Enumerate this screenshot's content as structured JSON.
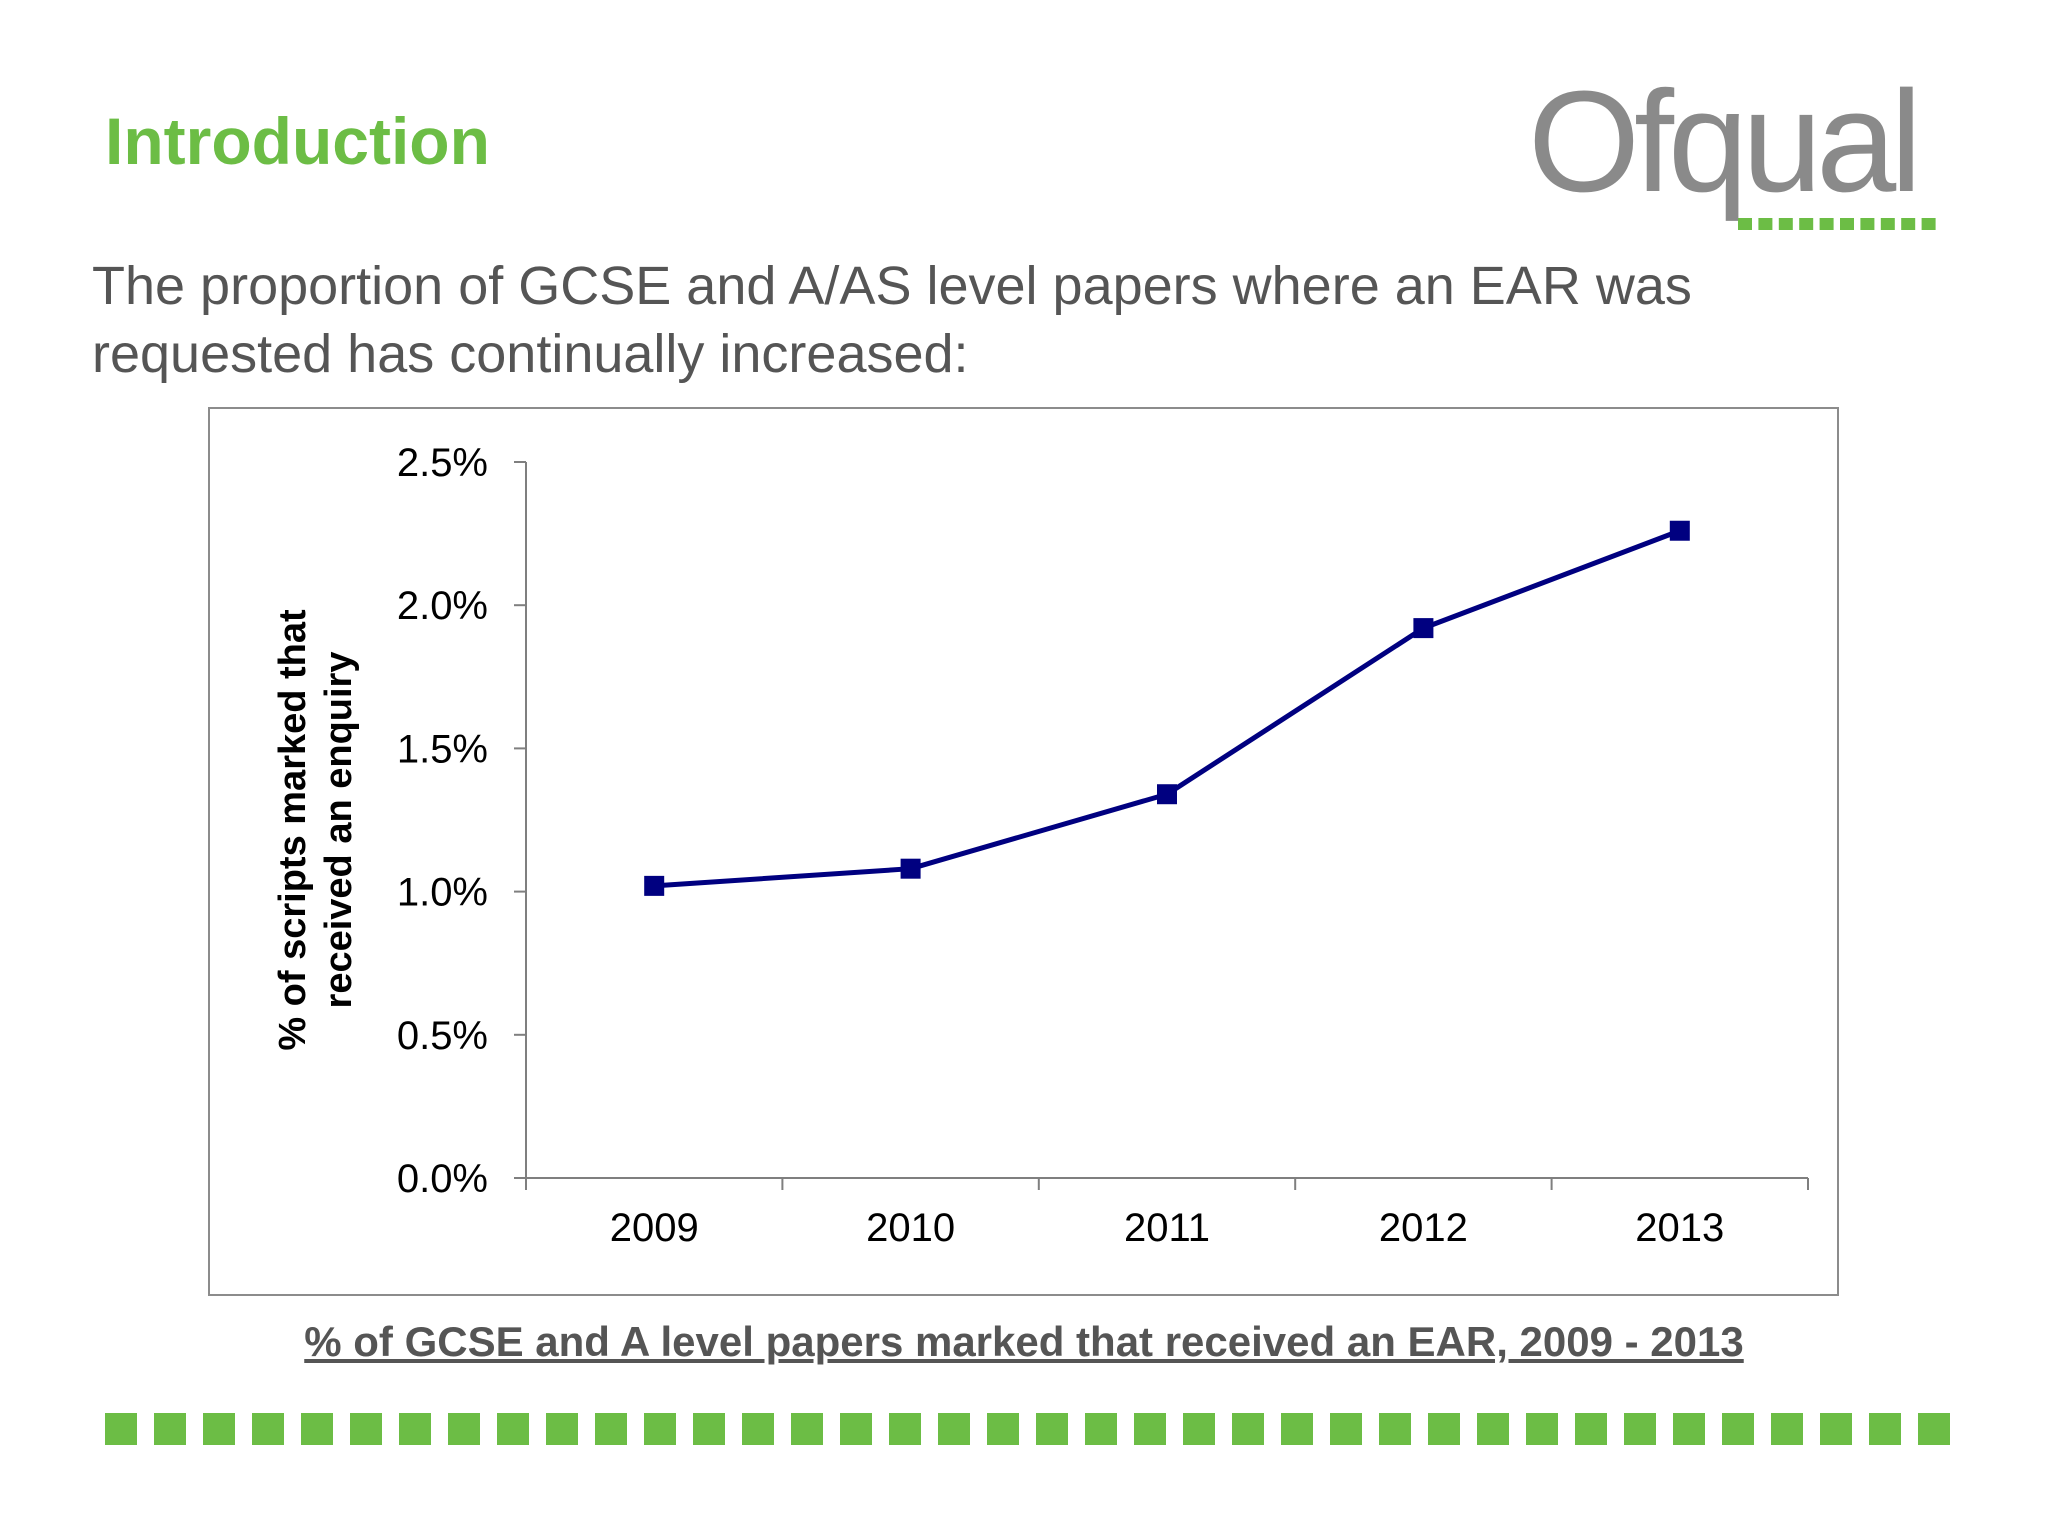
{
  "slide": {
    "title": "Introduction",
    "logo_text": "Ofqual",
    "intro_text": "The proportion of GCSE and A/AS level papers where an EAR was requested has continually increased:",
    "caption": "% of GCSE and A level papers marked that received an EAR, 2009 - 2013"
  },
  "colors": {
    "accent_green": "#6cbd45",
    "logo_gray": "#8a8a8a",
    "series_navy": "#000080"
  },
  "chart_data": {
    "type": "line",
    "title": "",
    "ylabel": "% of scripts marked that received an enquiry",
    "xlabel": "",
    "categories": [
      "2009",
      "2010",
      "2011",
      "2012",
      "2013"
    ],
    "series": [
      {
        "values": [
          1.02,
          1.08,
          1.34,
          1.92,
          2.26
        ],
        "color": "#000080",
        "marker": "square"
      }
    ],
    "ylim": [
      0,
      2.5
    ],
    "yticks": [
      0,
      0.5,
      1.0,
      1.5,
      2.0,
      2.5
    ],
    "ytick_labels": [
      "0.0%",
      "0.5%",
      "1.0%",
      "1.5%",
      "2.0%",
      "2.5%"
    ],
    "grid": false,
    "legend": "none"
  }
}
